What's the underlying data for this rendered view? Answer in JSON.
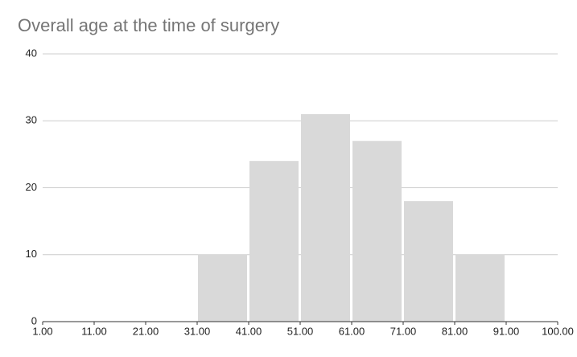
{
  "chart_data": {
    "type": "histogram",
    "title": "Overall age at the time of surgery",
    "bins": [
      1,
      11,
      21,
      31,
      41,
      51,
      61,
      71,
      81,
      91,
      100
    ],
    "values": [
      0,
      0,
      0,
      10,
      24,
      31,
      27,
      18,
      10,
      0
    ],
    "color": "#d9d9d9",
    "ylim": [
      0,
      40
    ],
    "yticks": [
      0,
      10,
      20,
      30,
      40
    ],
    "xticks": [
      {
        "value": 1,
        "label": "1.00"
      },
      {
        "value": 11,
        "label": "11.00"
      },
      {
        "value": 21,
        "label": "21.00"
      },
      {
        "value": 31,
        "label": "31.00"
      },
      {
        "value": 41,
        "label": "41.00"
      },
      {
        "value": 51,
        "label": "51.00"
      },
      {
        "value": 61,
        "label": "61.00"
      },
      {
        "value": 71,
        "label": "71.00"
      },
      {
        "value": 81,
        "label": "81.00"
      },
      {
        "value": 91,
        "label": "91.00"
      },
      {
        "value": 100,
        "label": "100.00"
      }
    ],
    "grid": true
  }
}
